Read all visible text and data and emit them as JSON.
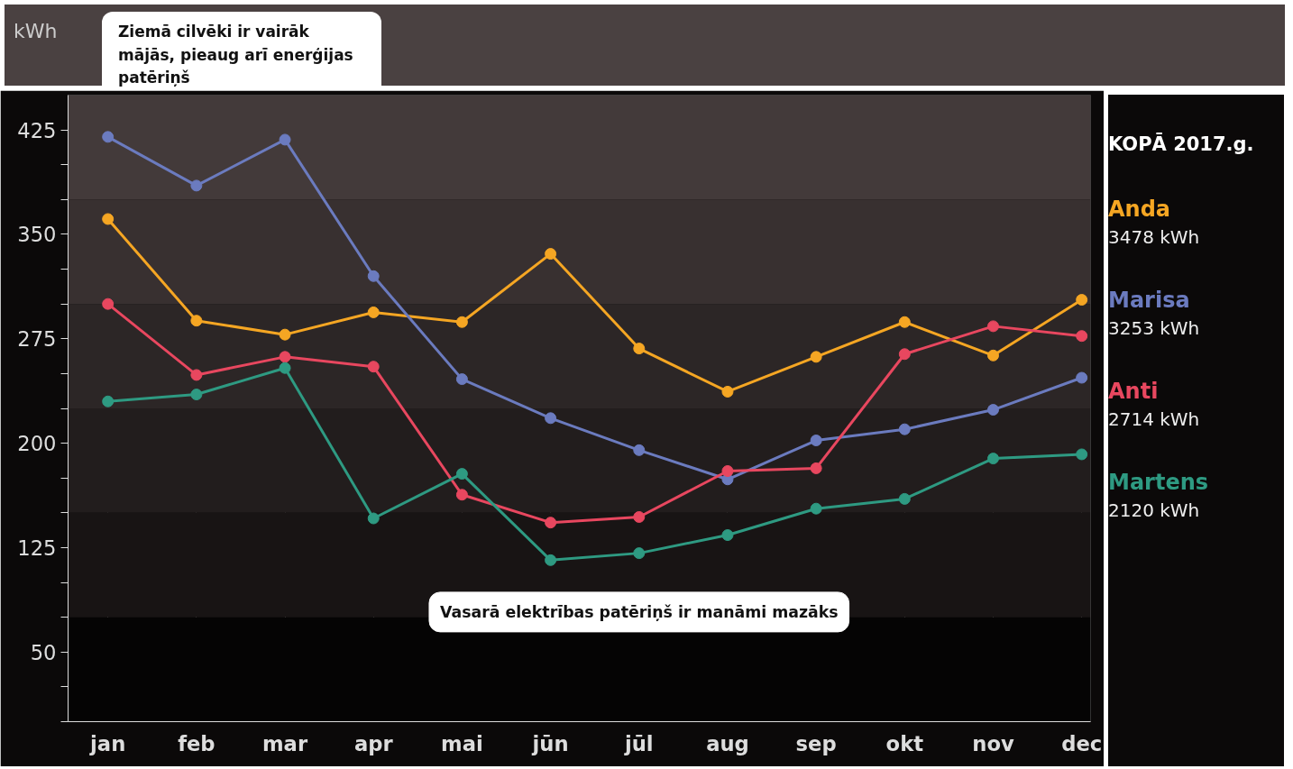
{
  "chart_data": {
    "type": "line",
    "ylabel": "kWh",
    "categories": [
      "jan",
      "feb",
      "mar",
      "apr",
      "mai",
      "jūn",
      "jūl",
      "aug",
      "sep",
      "okt",
      "nov",
      "dec"
    ],
    "series": [
      {
        "name": "Anda",
        "color": "#f5a623",
        "values": [
          361,
          288,
          278,
          294,
          287,
          336,
          268,
          237,
          262,
          287,
          263,
          303
        ]
      },
      {
        "name": "Marisa",
        "color": "#6b7bbf",
        "values": [
          420,
          385,
          418,
          320,
          246,
          218,
          195,
          174,
          202,
          210,
          224,
          247
        ]
      },
      {
        "name": "Anti",
        "color": "#e8475f",
        "values": [
          300,
          249,
          262,
          255,
          163,
          143,
          147,
          180,
          182,
          264,
          284,
          277
        ]
      },
      {
        "name": "Martens",
        "color": "#2e9a82",
        "values": [
          230,
          235,
          254,
          146,
          178,
          116,
          121,
          134,
          153,
          160,
          189,
          192
        ]
      }
    ],
    "ylim": [
      0,
      450
    ],
    "yticks": [
      {
        "value": 0,
        "label": null
      },
      {
        "value": 25,
        "label": null
      },
      50,
      {
        "value": 75,
        "label": null
      },
      {
        "value": 100,
        "label": null
      },
      125,
      {
        "value": 150,
        "label": null
      },
      {
        "value": 175,
        "label": null
      },
      200,
      {
        "value": 225,
        "label": null
      },
      {
        "value": 250,
        "label": null
      },
      275,
      {
        "value": 300,
        "label": null
      },
      {
        "value": 325,
        "label": null
      },
      350,
      {
        "value": 375,
        "label": null
      },
      {
        "value": 400,
        "label": null
      },
      425
    ],
    "bands": [
      {
        "axis": "y",
        "from": 0,
        "to": 75,
        "color": "#050404"
      },
      {
        "axis": "y",
        "from": 75,
        "to": 150,
        "color": "#181414"
      },
      {
        "axis": "y",
        "from": 150,
        "to": 225,
        "color": "#221d1d"
      },
      {
        "axis": "y",
        "from": 225,
        "to": 300,
        "color": "#2c2626"
      },
      {
        "axis": "y",
        "from": 300,
        "to": 375,
        "color": "#383030"
      },
      {
        "axis": "y",
        "from": 375,
        "to": 450,
        "color": "#433a3a"
      }
    ],
    "annotations": [
      "Ziemā cilvēki ir vairāk mājās, pieaug arī enerģijas patēriņš",
      "Vasarā elektrības patēriņš ir manāmi mazāks",
      "KOPĀ 2017.g.",
      "3478 kWh",
      "3253 kWh",
      "2714 kWh",
      "2120 kWh"
    ],
    "grid": "x",
    "marker": "circle",
    "line_style": "solid"
  }
}
